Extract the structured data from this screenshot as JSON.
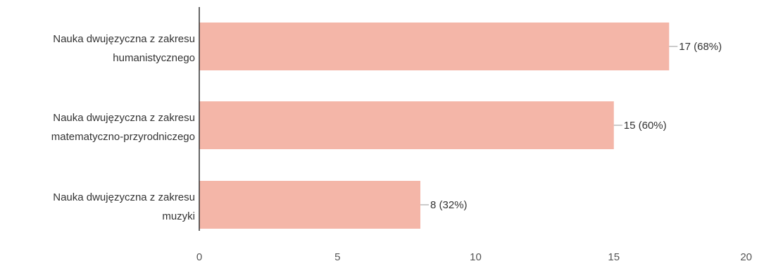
{
  "chart_data": {
    "type": "bar",
    "orientation": "horizontal",
    "categories": [
      [
        "Nauka dwujęzyczna z zakresu",
        "humanistycznego"
      ],
      [
        "Nauka dwujęzyczna z zakresu",
        "matematyczno-przyrodniczego"
      ],
      [
        "Nauka dwujęzyczna z zakresu",
        "muzyki"
      ]
    ],
    "values": [
      17,
      15,
      8
    ],
    "value_labels": [
      "17 (68%)",
      "15 (60%)",
      "8 (32%)"
    ],
    "xlim": [
      0,
      20
    ],
    "xticks": [
      "0",
      "5",
      "10",
      "15",
      "20"
    ],
    "grid": false,
    "bar_color": "#f4b6a8",
    "axis_color": "#333333"
  }
}
